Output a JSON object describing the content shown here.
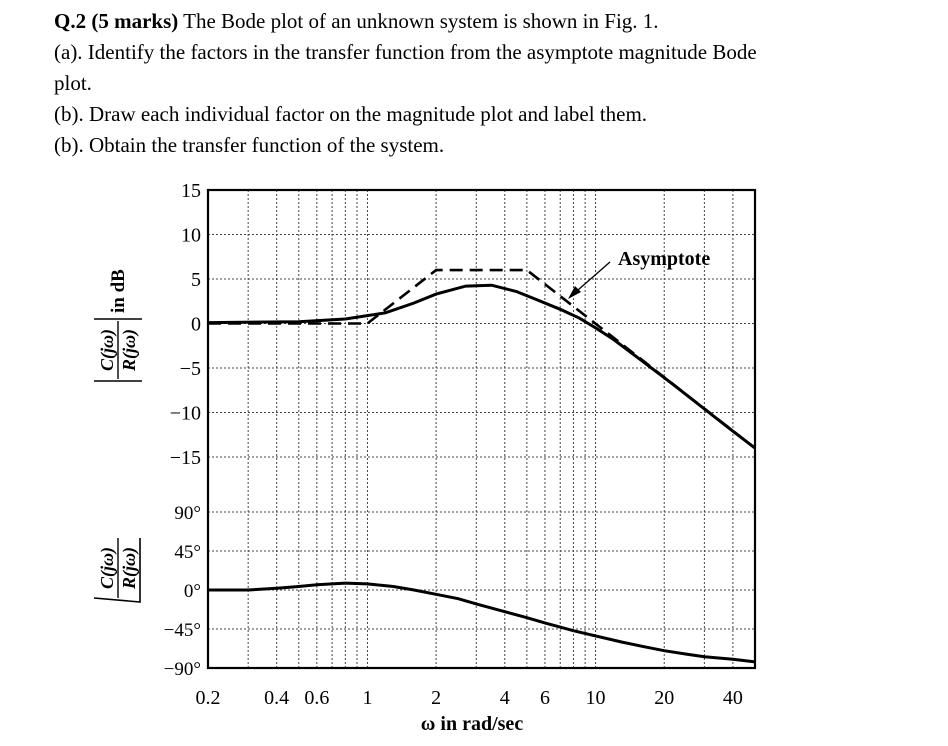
{
  "question": {
    "number": "Q.2 (5 marks)",
    "intro": " The Bode plot of an unknown system is shown in Fig. 1.",
    "parts": [
      "(a). Identify the factors in the transfer function from the asymptote magnitude Bode",
      "plot.",
      "(b). Draw each individual factor on the magnitude plot and label them.",
      "(b). Obtain the transfer function of the system."
    ]
  },
  "chart_data": {
    "type": "line",
    "xlabel": "ω in rad/sec",
    "x_scale": "log",
    "xlim": [
      0.2,
      50
    ],
    "x_ticks": [
      0.2,
      0.4,
      0.6,
      1,
      2,
      4,
      6,
      10,
      20,
      40
    ],
    "x_tick_labels": [
      "0.2",
      "0.4",
      "0.6",
      "1",
      "2",
      "4",
      "6",
      "10",
      "20",
      "40"
    ],
    "magnitude": {
      "ylabel_fraction": {
        "numerator": "C(jω)",
        "denominator": "R(jω)"
      },
      "ylabel_suffix": "in dB",
      "ylim": [
        -15,
        15
      ],
      "y_ticks": [
        15,
        10,
        5,
        0,
        -5,
        -10,
        -15
      ],
      "y_tick_labels": [
        "15",
        "10",
        "5",
        "0",
        "−5",
        "−10",
        "−15"
      ],
      "asymptote_annotation": "Asymptote",
      "asymptote": {
        "x": [
          0.2,
          1,
          2,
          5,
          50
        ],
        "y": [
          0,
          0,
          6,
          6,
          -14
        ]
      },
      "actual": {
        "x": [
          0.2,
          0.5,
          0.8,
          1.2,
          1.6,
          2,
          2.7,
          3.5,
          4.5,
          5.5,
          7,
          8.5,
          10,
          12,
          16,
          22,
          30,
          40,
          50
        ],
        "y": [
          0.1,
          0.2,
          0.5,
          1.2,
          2.3,
          3.3,
          4.2,
          4.3,
          3.6,
          2.7,
          1.6,
          0.6,
          -0.5,
          -1.8,
          -4.2,
          -6.9,
          -9.6,
          -12.1,
          -14.0
        ]
      }
    },
    "phase": {
      "ylabel_fraction": {
        "numerator": "C(jω)",
        "denominator": "R(jω)"
      },
      "ylim": [
        -90,
        90
      ],
      "y_ticks": [
        90,
        45,
        0,
        -45,
        -90
      ],
      "y_tick_labels": [
        "90°",
        "45°",
        "0°",
        "−45°",
        "−90°"
      ],
      "curve": {
        "x": [
          0.2,
          0.3,
          0.4,
          0.5,
          0.6,
          0.8,
          1,
          1.3,
          1.6,
          2,
          2.5,
          3,
          4,
          5,
          6,
          8,
          10,
          13,
          16,
          20,
          25,
          30,
          40,
          50
        ],
        "y": [
          0,
          0,
          2,
          4,
          6,
          8,
          7,
          4,
          0,
          -5,
          -10,
          -16,
          -25,
          -32,
          -38,
          -47,
          -53,
          -60,
          -65,
          -70,
          -74,
          -77,
          -80,
          -83
        ]
      }
    }
  }
}
